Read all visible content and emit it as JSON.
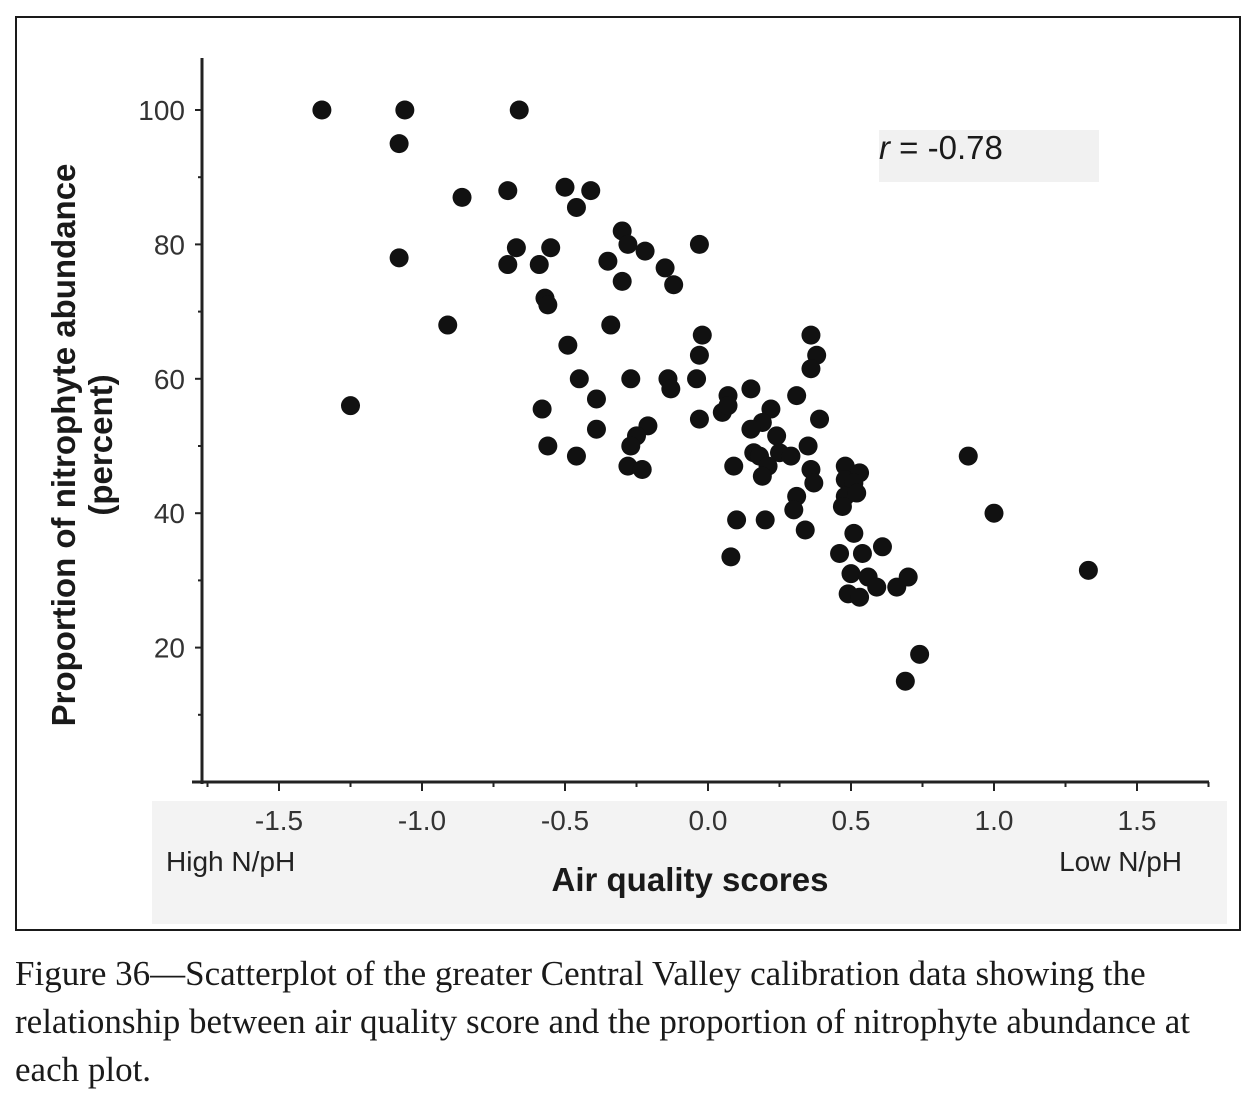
{
  "caption": "Figure 36—Scatterplot of the greater Central Valley calibration data showing the relationship between air quality score and the proportion of nitrophyte abundance at each plot.",
  "chart_data": {
    "type": "scatter",
    "title": "",
    "xlabel": "Air quality scores",
    "ylabel": "Proportion of nitrophyte abundance",
    "ylabel_line2": "(percent)",
    "x_left_label": "High N/pH",
    "x_right_label": "Low N/pH",
    "annotation": {
      "r_symbol": "r",
      "r_value": " = -0.78"
    },
    "xlim": [
      -1.75,
      1.75
    ],
    "ylim": [
      0,
      108
    ],
    "x_ticks": [
      -1.5,
      -1.0,
      -0.5,
      0.0,
      0.5,
      1.0,
      1.5
    ],
    "x_tick_labels": [
      "-1.5",
      "-1.0",
      "-0.5",
      "0.0",
      "0.5",
      "1.0",
      "1.5"
    ],
    "y_ticks": [
      20,
      40,
      60,
      80,
      100
    ],
    "y_tick_labels": [
      "20",
      "40",
      "60",
      "80",
      "100"
    ],
    "grid": false,
    "point_color": "#111111",
    "points": [
      {
        "x": -1.35,
        "y": 100
      },
      {
        "x": -1.06,
        "y": 100
      },
      {
        "x": -0.66,
        "y": 100
      },
      {
        "x": -1.08,
        "y": 95
      },
      {
        "x": -0.86,
        "y": 87
      },
      {
        "x": -0.7,
        "y": 88
      },
      {
        "x": -0.5,
        "y": 88.5
      },
      {
        "x": -0.41,
        "y": 88
      },
      {
        "x": -0.46,
        "y": 85.5
      },
      {
        "x": -1.08,
        "y": 78
      },
      {
        "x": -0.67,
        "y": 79.5
      },
      {
        "x": -0.55,
        "y": 79.5
      },
      {
        "x": -0.7,
        "y": 77
      },
      {
        "x": -0.59,
        "y": 77
      },
      {
        "x": -0.3,
        "y": 82
      },
      {
        "x": -0.28,
        "y": 80
      },
      {
        "x": -0.22,
        "y": 79
      },
      {
        "x": -0.03,
        "y": 80
      },
      {
        "x": -0.35,
        "y": 77.5
      },
      {
        "x": -0.15,
        "y": 76.5
      },
      {
        "x": -0.3,
        "y": 74.5
      },
      {
        "x": -0.12,
        "y": 74
      },
      {
        "x": -0.57,
        "y": 72
      },
      {
        "x": -0.56,
        "y": 71
      },
      {
        "x": -0.91,
        "y": 68
      },
      {
        "x": -0.34,
        "y": 68
      },
      {
        "x": -0.02,
        "y": 66.5
      },
      {
        "x": -0.49,
        "y": 65
      },
      {
        "x": -0.03,
        "y": 63.5
      },
      {
        "x": -1.25,
        "y": 56
      },
      {
        "x": -0.45,
        "y": 60
      },
      {
        "x": -0.27,
        "y": 60
      },
      {
        "x": -0.14,
        "y": 60
      },
      {
        "x": -0.13,
        "y": 58.5
      },
      {
        "x": -0.04,
        "y": 60
      },
      {
        "x": -0.39,
        "y": 57
      },
      {
        "x": -0.58,
        "y": 55.5
      },
      {
        "x": -0.03,
        "y": 54
      },
      {
        "x": -0.39,
        "y": 52.5
      },
      {
        "x": -0.21,
        "y": 53
      },
      {
        "x": -0.25,
        "y": 51.5
      },
      {
        "x": -0.27,
        "y": 50
      },
      {
        "x": -0.56,
        "y": 50
      },
      {
        "x": -0.46,
        "y": 48.5
      },
      {
        "x": -0.28,
        "y": 47
      },
      {
        "x": -0.23,
        "y": 46.5
      },
      {
        "x": 0.07,
        "y": 57.5
      },
      {
        "x": 0.05,
        "y": 55
      },
      {
        "x": 0.07,
        "y": 56
      },
      {
        "x": 0.15,
        "y": 58.5
      },
      {
        "x": 0.31,
        "y": 57.5
      },
      {
        "x": 0.22,
        "y": 55.5
      },
      {
        "x": 0.19,
        "y": 53.5
      },
      {
        "x": 0.15,
        "y": 52.5
      },
      {
        "x": 0.24,
        "y": 51.5
      },
      {
        "x": 0.35,
        "y": 50
      },
      {
        "x": 0.16,
        "y": 49
      },
      {
        "x": 0.18,
        "y": 48.5
      },
      {
        "x": 0.25,
        "y": 49
      },
      {
        "x": 0.29,
        "y": 48.5
      },
      {
        "x": 0.21,
        "y": 47
      },
      {
        "x": 0.19,
        "y": 45.5
      },
      {
        "x": 0.09,
        "y": 47
      },
      {
        "x": 0.36,
        "y": 46.5
      },
      {
        "x": 0.37,
        "y": 44.5
      },
      {
        "x": 0.31,
        "y": 42.5
      },
      {
        "x": 0.3,
        "y": 40.5
      },
      {
        "x": 0.2,
        "y": 39
      },
      {
        "x": 0.1,
        "y": 39
      },
      {
        "x": 0.34,
        "y": 37.5
      },
      {
        "x": 0.08,
        "y": 33.5
      },
      {
        "x": 0.36,
        "y": 66.5
      },
      {
        "x": 0.38,
        "y": 63.5
      },
      {
        "x": 0.36,
        "y": 61.5
      },
      {
        "x": 0.39,
        "y": 54
      },
      {
        "x": 0.48,
        "y": 47
      },
      {
        "x": 0.48,
        "y": 45
      },
      {
        "x": 0.53,
        "y": 46
      },
      {
        "x": 0.51,
        "y": 44.5
      },
      {
        "x": 0.48,
        "y": 42.5
      },
      {
        "x": 0.52,
        "y": 43
      },
      {
        "x": 0.47,
        "y": 41
      },
      {
        "x": 0.51,
        "y": 37
      },
      {
        "x": 0.46,
        "y": 34
      },
      {
        "x": 0.54,
        "y": 34
      },
      {
        "x": 0.61,
        "y": 35
      },
      {
        "x": 0.5,
        "y": 31
      },
      {
        "x": 0.56,
        "y": 30.5
      },
      {
        "x": 0.59,
        "y": 29
      },
      {
        "x": 0.49,
        "y": 28
      },
      {
        "x": 0.53,
        "y": 27.5
      },
      {
        "x": 0.66,
        "y": 29
      },
      {
        "x": 0.7,
        "y": 30.5
      },
      {
        "x": 0.74,
        "y": 19
      },
      {
        "x": 0.69,
        "y": 15
      },
      {
        "x": 0.91,
        "y": 48.5
      },
      {
        "x": 1.0,
        "y": 40
      },
      {
        "x": 1.33,
        "y": 31.5
      }
    ]
  }
}
